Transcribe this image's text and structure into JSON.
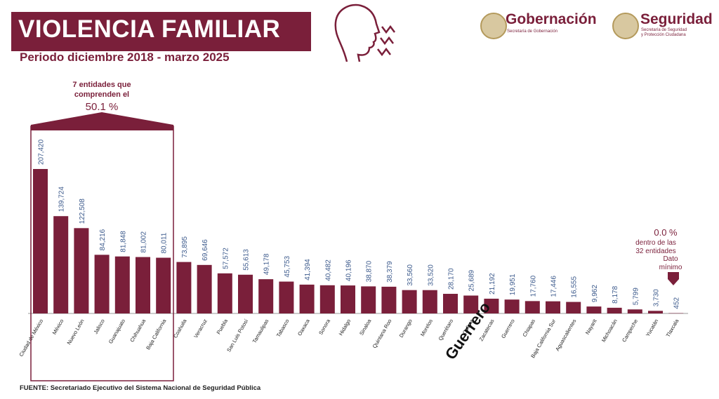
{
  "header": {
    "title": "VIOLENCIA FAMILIAR",
    "subtitle": "Periodo diciembre 2018 - marzo 2025"
  },
  "logos": {
    "gobernacion": {
      "name": "Gobernación",
      "sub": "Secretaría de Gobernación"
    },
    "seguridad": {
      "name": "Seguridad",
      "sub1": "Secretaría de Seguridad",
      "sub2": "y Protección Ciudadana"
    }
  },
  "callout_top": {
    "line1": "7 entidades que",
    "line2": "comprenden el",
    "line3": "50.1 %"
  },
  "callout_min": {
    "line1": "0.0 %",
    "line2": "dentro de las",
    "line3": "32 entidades",
    "line4": "Dato",
    "line5": "mínimo"
  },
  "handwritten_label": "Guerrero",
  "source": "FUENTE: Secretariado Ejecutivo del Sistema Nacional de Seguridad Pública",
  "colors": {
    "brand": "#7a1f3a",
    "value_label": "#3c5a8c"
  },
  "chart_data": {
    "type": "bar",
    "categories": [
      "Ciudad de México",
      "México",
      "Nuevo León",
      "Jalisco",
      "Guanajuato",
      "Chihuahua",
      "Baja California",
      "Coahuila",
      "Veracruz",
      "Puebla",
      "San Luis Potosí",
      "Tamaulipas",
      "Tabasco",
      "Oaxaca",
      "Sonora",
      "Hidalgo",
      "Sinaloa",
      "Quintana Roo",
      "Durango",
      "Morelos",
      "Querétaro",
      "Colima",
      "Zacatecas",
      "Guerrero",
      "Chiapas",
      "Baja California Sur",
      "Aguascalientes",
      "Nayarit",
      "Michoacán",
      "Campeche",
      "Yucatán",
      "Tlaxcala"
    ],
    "values": [
      207420,
      139724,
      122508,
      84216,
      81848,
      81002,
      80011,
      73895,
      69646,
      57572,
      55613,
      49178,
      45753,
      41394,
      40482,
      40196,
      38870,
      38379,
      33560,
      33520,
      28170,
      25689,
      21192,
      19951,
      17760,
      17446,
      16555,
      9962,
      8178,
      5799,
      3730,
      452
    ],
    "value_labels": [
      "207,420",
      "139,724",
      "122,508",
      "84,216",
      "81,848",
      "81,002",
      "80,011",
      "73,895",
      "69,646",
      "57,572",
      "55,613",
      "49,178",
      "45,753",
      "41,394",
      "40,482",
      "40,196",
      "38,870",
      "38,379",
      "33,560",
      "33,520",
      "28,170",
      "25,689",
      "21,192",
      "19,951",
      "17,760",
      "17,446",
      "16,555",
      "9,962",
      "8,178",
      "5,799",
      "3,730",
      "452"
    ],
    "title": "VIOLENCIA FAMILIAR",
    "xlabel": "",
    "ylabel": "",
    "ylim": [
      0,
      207420
    ],
    "grid": false,
    "highlight_group": [
      0,
      6
    ]
  }
}
